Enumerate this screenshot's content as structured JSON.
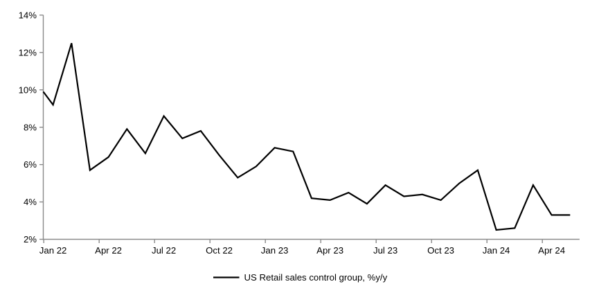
{
  "colors": {
    "background": "#ffffff",
    "series_line": "#000000",
    "axis_line": "#8a8a8a",
    "text": "#000000"
  },
  "chart_data": {
    "type": "line",
    "title": "",
    "series_name": "US Retail sales control group, %y/y",
    "legend_position": "bottom-center",
    "grid": "off",
    "ylim": [
      2,
      14
    ],
    "y_tick_step": 2,
    "y_tick_labels": [
      "2%",
      "4%",
      "6%",
      "8%",
      "10%",
      "12%",
      "14%"
    ],
    "x_tick_labels": [
      "Jan 22",
      "Apr 22",
      "Jul 22",
      "Oct 22",
      "Jan 23",
      "Apr 23",
      "Jul 23",
      "Oct 23",
      "Jan 24",
      "Apr 24"
    ],
    "categories": [
      "Jan 22",
      "Feb 22",
      "Mar 22",
      "Apr 22",
      "May 22",
      "Jun 22",
      "Jul 22",
      "Aug 22",
      "Sep 22",
      "Oct 22",
      "Nov 22",
      "Dec 22",
      "Jan 23",
      "Feb 23",
      "Mar 23",
      "Apr 23",
      "May 23",
      "Jun 23",
      "Jul 23",
      "Aug 23",
      "Sep 23",
      "Oct 23",
      "Nov 23",
      "Dec 23",
      "Jan 24",
      "Feb 24",
      "Mar 24",
      "Apr 24",
      "May 24"
    ],
    "values": [
      9.2,
      12.5,
      5.7,
      6.4,
      7.9,
      6.6,
      8.6,
      7.4,
      7.8,
      6.5,
      5.3,
      5.9,
      6.9,
      6.7,
      4.2,
      4.1,
      4.5,
      3.9,
      4.9,
      4.3,
      4.4,
      4.1,
      5.0,
      5.7,
      2.5,
      2.6,
      4.9,
      3.3,
      3.3
    ],
    "left_edge_clip_value": 9.9
  }
}
